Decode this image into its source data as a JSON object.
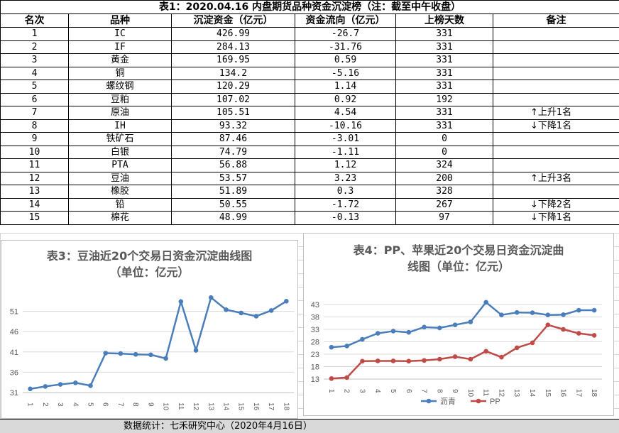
{
  "table": {
    "title": "表1：2020.04.16 内盘期货品种资金沉淀榜（注：截至中午收盘）",
    "headers": [
      "名次",
      "品种",
      "沉淀资金（亿元）",
      "资金流向（亿元）",
      "上榜天数",
      "备注"
    ],
    "rows": [
      {
        "rank": "1",
        "name": "IC",
        "fund": "426.99",
        "flow": "-26.7",
        "days": "331",
        "note": ""
      },
      {
        "rank": "2",
        "name": "IF",
        "fund": "284.13",
        "flow": "-31.76",
        "days": "331",
        "note": ""
      },
      {
        "rank": "3",
        "name": "黄金",
        "fund": "169.95",
        "flow": "0.59",
        "days": "331",
        "note": ""
      },
      {
        "rank": "4",
        "name": "铜",
        "fund": "134.2",
        "flow": "-5.16",
        "days": "331",
        "note": ""
      },
      {
        "rank": "5",
        "name": "螺纹钢",
        "fund": "120.29",
        "flow": "1.14",
        "days": "331",
        "note": ""
      },
      {
        "rank": "6",
        "name": "豆粕",
        "fund": "107.02",
        "flow": "0.92",
        "days": "192",
        "note": ""
      },
      {
        "rank": "7",
        "name": "原油",
        "fund": "105.51",
        "flow": "4.54",
        "days": "331",
        "note": "↑上升1名"
      },
      {
        "rank": "8",
        "name": "IH",
        "fund": "93.32",
        "flow": "-10.16",
        "days": "331",
        "note": "↓下降1名"
      },
      {
        "rank": "9",
        "name": "铁矿石",
        "fund": "87.46",
        "flow": "-3.01",
        "days": "0",
        "note": ""
      },
      {
        "rank": "10",
        "name": "白银",
        "fund": "74.79",
        "flow": "-1.11",
        "days": "0",
        "note": ""
      },
      {
        "rank": "11",
        "name": "PTA",
        "fund": "56.88",
        "flow": "1.12",
        "days": "324",
        "note": ""
      },
      {
        "rank": "12",
        "name": "豆油",
        "fund": "53.57",
        "flow": "3.23",
        "days": "200",
        "note": "↑上升3名"
      },
      {
        "rank": "13",
        "name": "橡胶",
        "fund": "51.89",
        "flow": "0.3",
        "days": "328",
        "note": ""
      },
      {
        "rank": "14",
        "name": "铅",
        "fund": "50.55",
        "flow": "-1.72",
        "days": "267",
        "note": "↓下降2名"
      },
      {
        "rank": "15",
        "name": "棉花",
        "fund": "48.99",
        "flow": "-0.13",
        "days": "97",
        "note": "↓下降1名"
      }
    ]
  },
  "chart_data": [
    {
      "type": "line",
      "title": "表3：豆油近20个交易日资金沉淀曲线图",
      "subtitle": "（单位：亿元）",
      "x": [
        "1",
        "2",
        "3",
        "4",
        "5",
        "6",
        "7",
        "8",
        "9",
        "10",
        "11",
        "12",
        "13",
        "14",
        "15",
        "16",
        "17",
        "18"
      ],
      "ylim": [
        31,
        56
      ],
      "yticks": [
        31,
        36,
        41,
        46,
        51
      ],
      "series": [
        {
          "name": "",
          "color": "#4a7ebb",
          "values": [
            31.9,
            32.5,
            33.0,
            33.4,
            32.7,
            40.7,
            40.6,
            40.4,
            40.3,
            39.4,
            53.4,
            41.4,
            54.4,
            51.4,
            50.6,
            49.8,
            51.2,
            53.5
          ]
        }
      ],
      "legend": "none"
    },
    {
      "type": "line",
      "title": "表4：PP、苹果近20个交易日资金沉淀曲",
      "subtitle": "线图（单位：亿元）",
      "x": [
        "1",
        "2",
        "3",
        "4",
        "5",
        "6",
        "7",
        "8",
        "9",
        "10",
        "11",
        "12",
        "13",
        "14",
        "15",
        "16",
        "17",
        "18"
      ],
      "ylim": [
        13,
        45
      ],
      "yticks": [
        13,
        18,
        23,
        28,
        33,
        38,
        43
      ],
      "series": [
        {
          "name": "沥青",
          "color": "#4a7ebb",
          "values": [
            25.8,
            26.3,
            29.0,
            31.4,
            32.3,
            31.8,
            33.9,
            33.6,
            34.8,
            36.0,
            43.9,
            38.8,
            39.8,
            39.7,
            38.8,
            38.9,
            40.7,
            40.7
          ]
        },
        {
          "name": "PP",
          "color": "#be4b48",
          "values": [
            13.2,
            13.6,
            20.2,
            20.3,
            20.3,
            20.2,
            20.5,
            21.0,
            22.0,
            21.0,
            24.2,
            21.8,
            25.6,
            27.6,
            34.8,
            33.0,
            31.4,
            30.6
          ]
        }
      ],
      "legend": "bottom"
    }
  ],
  "footer": {
    "text": "数据统计：七禾研究中心（2020年4月16日）"
  }
}
